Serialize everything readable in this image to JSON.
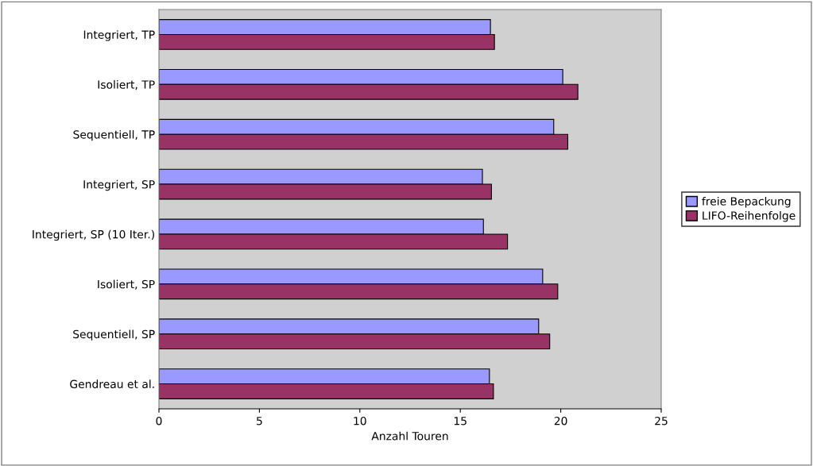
{
  "chart_data": {
    "type": "bar",
    "orientation": "horizontal",
    "xlabel": "Anzahl Touren",
    "categories": [
      "Integriert, TP",
      "Isoliert, TP",
      "Sequentiell, TP",
      "Integriert, SP",
      "Integriert, SP (10 Iter.)",
      "Isoliert, SP",
      "Sequentiell, SP",
      "Gendreau et al."
    ],
    "series": [
      {
        "name": "freie Bepackung",
        "color": "#9999ff",
        "values": [
          16.5,
          20.1,
          19.65,
          16.1,
          16.15,
          19.1,
          18.9,
          16.45
        ]
      },
      {
        "name": "LIFO-Reihenfolge",
        "color": "#993366",
        "values": [
          16.7,
          20.85,
          20.35,
          16.55,
          17.35,
          19.85,
          19.45,
          16.65
        ]
      }
    ],
    "xlim": [
      0,
      25
    ],
    "xticks": [
      0,
      5,
      10,
      15,
      20,
      25
    ],
    "grid": false,
    "legend": "right"
  }
}
